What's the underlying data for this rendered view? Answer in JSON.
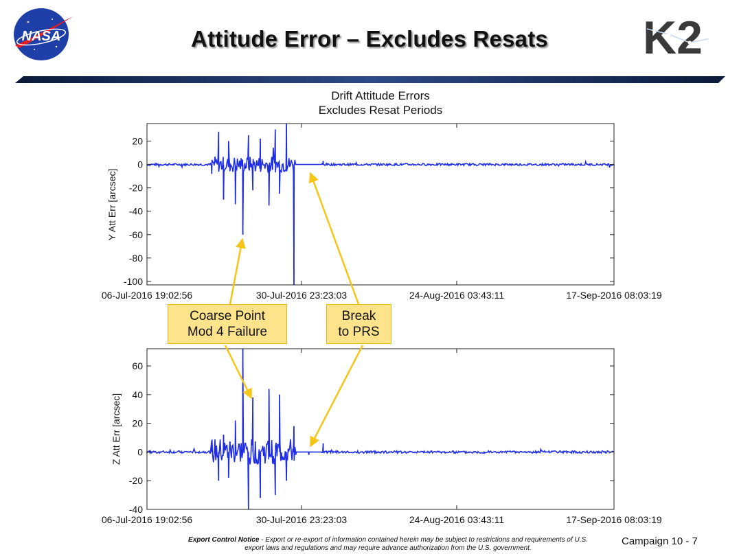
{
  "slide": {
    "title": "Attitude Error – Excludes Resats",
    "logo_left_text": "NASA",
    "logo_right_text": "K2",
    "page_number": "Campaign 10 - 7",
    "export_notice_label": "Export Control Notice",
    "export_notice_text": " - Export or re-export of information contained herein may be subject to restrictions and requirements of U.S. export laws and regulations and may require advance authorization from the U.S. government."
  },
  "colors": {
    "series": "#1f2ee6",
    "callout_fill": "#fde48a",
    "arrow": "#f5c518",
    "title_rule": "#1b2f5e"
  },
  "callouts": {
    "coarse": [
      "Coarse Point",
      "Mod 4 Failure"
    ],
    "break": [
      "Break",
      "to PRS"
    ]
  },
  "chart_data": [
    {
      "type": "line",
      "title": [
        "Drift Attitude Errors",
        "Excludes Resat Periods"
      ],
      "xlabel": "",
      "ylabel": "Y Att Err [arcsec]",
      "ylim": [
        -103,
        35
      ],
      "yticks": [
        20,
        0,
        -20,
        -40,
        -60,
        -80,
        -100
      ],
      "xticks": [
        "06-Jul-2016 19:02:56",
        "30-Jul-2016 23:23:03",
        "24-Aug-2016 03:43:11",
        "17-Sep-2016 08:03:19"
      ],
      "series": [
        {
          "x_days": [
            0,
            10.2,
            10.4,
            11.5,
            12.3,
            13.1,
            14.2,
            15.4,
            16.3,
            17.0,
            18.2,
            19.6,
            20.6,
            21.3,
            22.4,
            23.6,
            23.9,
            26,
            28,
            28.3,
            29,
            35,
            45,
            55,
            65,
            68,
            75
          ],
          "y": [
            0,
            0,
            -8,
            28,
            -30,
            20,
            -34,
            -60,
            25,
            -22,
            22,
            -35,
            30,
            -25,
            35,
            -103,
            0,
            0,
            0,
            3,
            0,
            0,
            0,
            0,
            0,
            0,
            0
          ]
        }
      ]
    },
    {
      "type": "line",
      "title": "",
      "xlabel": "",
      "ylabel": "Z Att Err [arcsec]",
      "ylim": [
        -40,
        72
      ],
      "yticks": [
        60,
        40,
        20,
        0,
        -20,
        -40
      ],
      "xticks": [
        "06-Jul-2016 19:02:56",
        "30-Jul-2016 23:23:03",
        "24-Aug-2016 03:43:11",
        "17-Sep-2016 08:03:19"
      ],
      "series": [
        {
          "x_days": [
            0,
            10.2,
            10.4,
            11.5,
            12.3,
            13.1,
            14.2,
            15.4,
            16.3,
            17.0,
            18.2,
            19.6,
            20.6,
            21.3,
            22.4,
            23.6,
            23.9,
            26,
            28,
            28.3,
            29,
            35,
            45,
            55,
            65,
            68,
            75
          ],
          "y": [
            0,
            0,
            8,
            -20,
            12,
            -18,
            22,
            72,
            -40,
            38,
            -32,
            44,
            -30,
            40,
            -20,
            18,
            -2,
            -2,
            0,
            6,
            0,
            0,
            0,
            0,
            0,
            0,
            0
          ]
        }
      ]
    }
  ]
}
